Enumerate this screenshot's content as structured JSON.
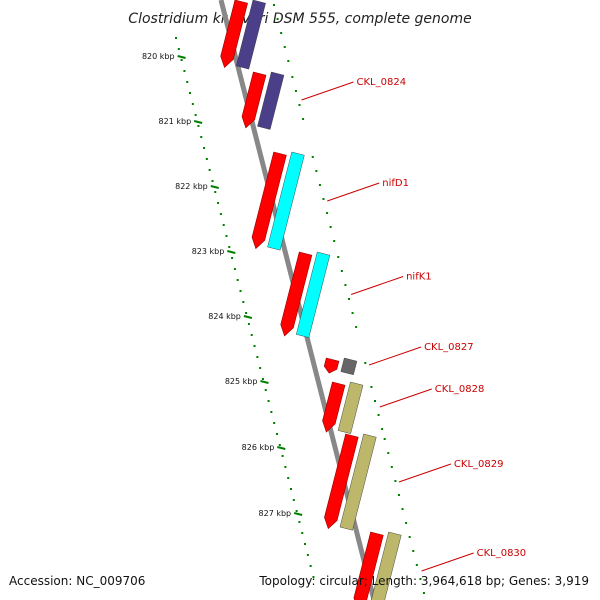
{
  "title": "Clostridium kluyveri DSM 555, complete genome",
  "footer": {
    "accession": "Accession: NC_009706",
    "summary": "Topology: circular; Length: 3,964,618 bp; Genes: 3,919"
  },
  "scale_ticks": [
    "820 kbp",
    "821 kbp",
    "822 kbp",
    "823 kbp",
    "824 kbp",
    "825 kbp",
    "826 kbp",
    "827 kbp"
  ],
  "genes": [
    {
      "label": "",
      "strand": "+",
      "color": "#4b3f8a"
    },
    {
      "label": "CKL_0824",
      "strand": "+",
      "color": "#4b3f8a"
    },
    {
      "label": "nifD1",
      "strand": "+",
      "color": "#00ffff"
    },
    {
      "label": "nifK1",
      "strand": "+",
      "color": "#00ffff"
    },
    {
      "label": "CKL_0827",
      "strand": "+",
      "color": "#666666"
    },
    {
      "label": "CKL_0828",
      "strand": "+",
      "color": "#bdb76b"
    },
    {
      "label": "CKL_0829",
      "strand": "+",
      "color": "#bdb76b"
    },
    {
      "label": "CKL_0830",
      "strand": "+",
      "color": "#bdb76b"
    }
  ],
  "colors": {
    "cds": "#ff0000",
    "backbone": "#888888",
    "tick": "#008000",
    "label": "#cc0000",
    "leader": "#cc0000"
  }
}
